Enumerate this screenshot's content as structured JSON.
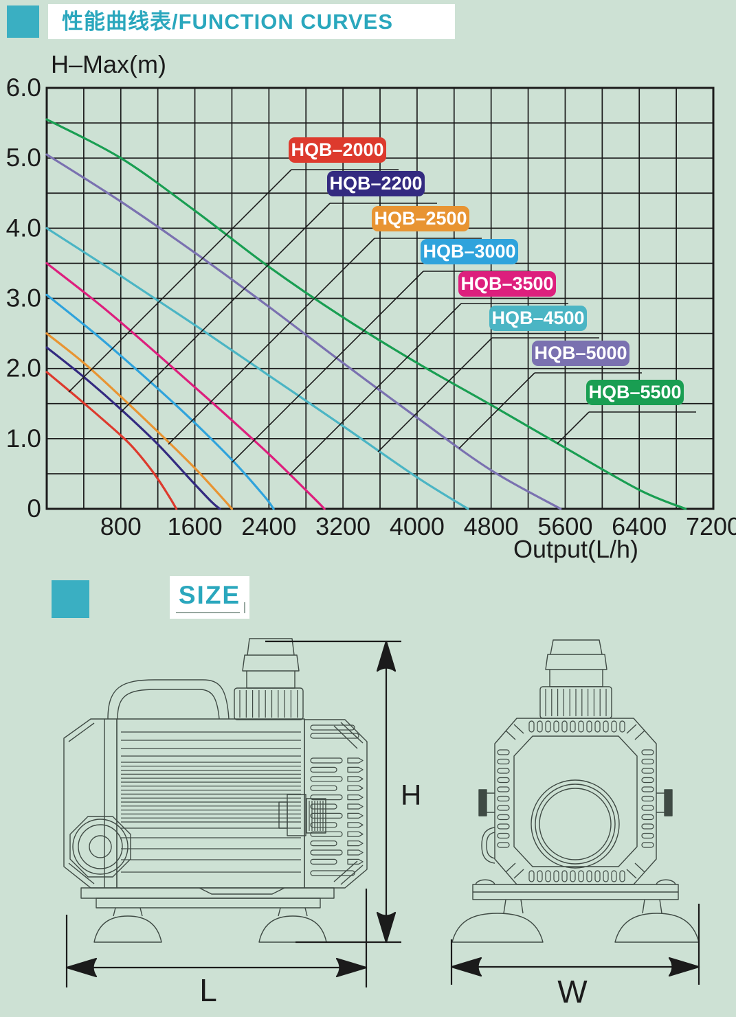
{
  "page": {
    "background": "#cde1d4",
    "accent": "#3aafc2",
    "ink": "#1b1b1b",
    "line_art_color": "#3f4a44"
  },
  "header": {
    "title": "性能曲线表/FUNCTION CURVES"
  },
  "chart_data": {
    "type": "line",
    "title": "H–Max(m)",
    "xlabel": "Output(L/h)",
    "ylabel": "H–Max(m)",
    "xlim": [
      0,
      7200
    ],
    "ylim": [
      0,
      6.0
    ],
    "grid": {
      "on": true,
      "x_step": 400,
      "y_step": 0.5
    },
    "x_ticks": [
      800,
      1600,
      2400,
      3200,
      4000,
      4800,
      5600,
      6400,
      7200
    ],
    "y_ticks": [
      {
        "value": 6.0,
        "label": "6.0"
      },
      {
        "value": 5.0,
        "label": "5.0"
      },
      {
        "value": 4.0,
        "label": "4.0"
      },
      {
        "value": 3.0,
        "label": "3.0"
      },
      {
        "value": 2.0,
        "label": "2.0"
      },
      {
        "value": 1.0,
        "label": "1.0"
      },
      {
        "value": 0,
        "label": "0"
      }
    ],
    "legend_position": "labels-on-chart",
    "series": [
      {
        "name": "HQB–2000",
        "color": "#dd3a2d",
        "points": [
          [
            0,
            1.95
          ],
          [
            300,
            1.62
          ],
          [
            600,
            1.28
          ],
          [
            900,
            0.92
          ],
          [
            1150,
            0.52
          ],
          [
            1320,
            0.18
          ],
          [
            1400,
            0
          ]
        ]
      },
      {
        "name": "HQB–2200",
        "color": "#332a80",
        "points": [
          [
            0,
            2.3
          ],
          [
            400,
            1.88
          ],
          [
            800,
            1.42
          ],
          [
            1200,
            0.92
          ],
          [
            1550,
            0.42
          ],
          [
            1780,
            0.1
          ],
          [
            1870,
            0
          ]
        ]
      },
      {
        "name": "HQB–2500",
        "color": "#e89432",
        "points": [
          [
            0,
            2.5
          ],
          [
            400,
            2.08
          ],
          [
            800,
            1.6
          ],
          [
            1200,
            1.1
          ],
          [
            1600,
            0.58
          ],
          [
            1900,
            0.15
          ],
          [
            2000,
            0
          ]
        ]
      },
      {
        "name": "HQB–3000",
        "color": "#2fa3dc",
        "points": [
          [
            0,
            3.05
          ],
          [
            500,
            2.52
          ],
          [
            1000,
            1.95
          ],
          [
            1500,
            1.35
          ],
          [
            2000,
            0.7
          ],
          [
            2350,
            0.18
          ],
          [
            2450,
            0
          ]
        ]
      },
      {
        "name": "HQB–3500",
        "color": "#dd1f7d",
        "points": [
          [
            0,
            3.5
          ],
          [
            600,
            2.88
          ],
          [
            1200,
            2.2
          ],
          [
            1800,
            1.5
          ],
          [
            2400,
            0.78
          ],
          [
            2850,
            0.2
          ],
          [
            3000,
            0
          ]
        ]
      },
      {
        "name": "HQB–4500",
        "color": "#4bb5c4",
        "points": [
          [
            0,
            4.0
          ],
          [
            800,
            3.32
          ],
          [
            1600,
            2.62
          ],
          [
            2400,
            1.9
          ],
          [
            3200,
            1.18
          ],
          [
            4000,
            0.45
          ],
          [
            4550,
            0
          ]
        ]
      },
      {
        "name": "HQB–5000",
        "color": "#7a71b0",
        "points": [
          [
            0,
            5.05
          ],
          [
            800,
            4.38
          ],
          [
            1600,
            3.65
          ],
          [
            2400,
            2.88
          ],
          [
            3200,
            2.08
          ],
          [
            4000,
            1.3
          ],
          [
            4800,
            0.55
          ],
          [
            5550,
            0
          ]
        ]
      },
      {
        "name": "HQB–5500",
        "color": "#199e52",
        "points": [
          [
            0,
            5.55
          ],
          [
            800,
            5.0
          ],
          [
            1600,
            4.25
          ],
          [
            2400,
            3.45
          ],
          [
            3200,
            2.73
          ],
          [
            4000,
            2.08
          ],
          [
            4800,
            1.48
          ],
          [
            5600,
            0.87
          ],
          [
            6400,
            0.27
          ],
          [
            6900,
            0
          ]
        ]
      }
    ]
  },
  "size_section": {
    "title": "SIZE",
    "dimension_labels": {
      "height": "H",
      "length": "L",
      "width": "W"
    },
    "views": [
      "pump-side-view",
      "pump-front-view"
    ]
  }
}
